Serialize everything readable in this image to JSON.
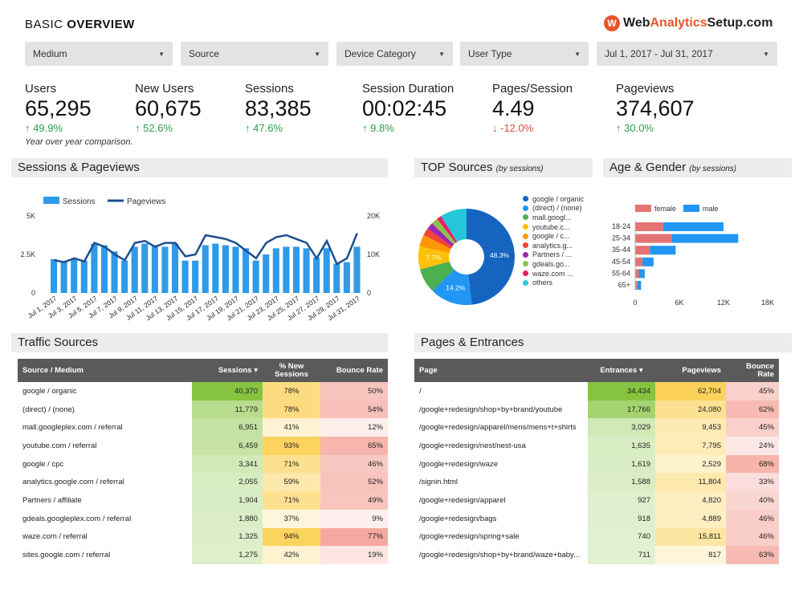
{
  "header": {
    "title_light": "BASIC ",
    "title_bold": "OVERVIEW",
    "logo_icon": "W",
    "logo_a": "Web",
    "logo_b": "Analytics",
    "logo_c": "Setup.com"
  },
  "filters": {
    "medium": "Medium",
    "source": "Source",
    "device": "Device Category",
    "user_type": "User Type",
    "date_range": "Jul 1, 2017 - Jul 31, 2017"
  },
  "kpis": [
    {
      "label": "Users",
      "value": "65,295",
      "change": "49.9%",
      "dir": "up"
    },
    {
      "label": "New Users",
      "value": "60,675",
      "change": "52.6%",
      "dir": "up"
    },
    {
      "label": "Sessions",
      "value": "83,385",
      "change": "47.6%",
      "dir": "up"
    },
    {
      "label": "Session Duration",
      "value": "00:02:45",
      "change": "9.8%",
      "dir": "up"
    },
    {
      "label": "Pages/Session",
      "value": "4.49",
      "change": "-12.0%",
      "dir": "down"
    },
    {
      "label": "Pageviews",
      "value": "374,607",
      "change": "30.0%",
      "dir": "up"
    }
  ],
  "yoy_note": "Year over year comparison.",
  "sections": {
    "sessions_pageviews": "Sessions & Pageviews",
    "top_sources": "TOP Sources",
    "top_sources_sub": "(by sessions)",
    "age_gender": "Age & Gender",
    "age_gender_sub": "(by sessions)",
    "traffic_sources": "Traffic Sources",
    "pages_entrances": "Pages & Entrances"
  },
  "colors": {
    "bar": "#2f9ae8",
    "line": "#1c4f8f",
    "female": "#e57373",
    "male": "#2196f3",
    "green": "#86c440",
    "yellow": "#fcd25b",
    "red": "#f4a59b"
  },
  "chart_data": [
    {
      "type": "bar",
      "title": "Sessions & Pageviews",
      "categories": [
        "Jul 1, 2017",
        "Jul 2, 2017",
        "Jul 3, 2017",
        "Jul 4, 2017",
        "Jul 5, 2017",
        "Jul 6, 2017",
        "Jul 7, 2017",
        "Jul 8, 2017",
        "Jul 9, 2017",
        "Jul 10, 2017",
        "Jul 11, 2017",
        "Jul 12, 2017",
        "Jul 13, 2017",
        "Jul 14, 2017",
        "Jul 15, 2017",
        "Jul 16, 2017",
        "Jul 17, 2017",
        "Jul 18, 2017",
        "Jul 19, 2017",
        "Jul 20, 2017",
        "Jul 21, 2017",
        "Jul 22, 2017",
        "Jul 23, 2017",
        "Jul 24, 2017",
        "Jul 25, 2017",
        "Jul 26, 2017",
        "Jul 27, 2017",
        "Jul 28, 2017",
        "Jul 29, 2017",
        "Jul 30, 2017",
        "Jul 31, 2017"
      ],
      "tick_labels": [
        "Jul 1, 2017",
        "Jul 3, 2017",
        "Jul 5, 2017",
        "Jul 7, 2017",
        "Jul 9, 2017",
        "Jul 11, 2017",
        "Jul 13, 2017",
        "Jul 15, 2017",
        "Jul 17, 2017",
        "Jul 19, 2017",
        "Jul 21, 2017",
        "Jul 23, 2017",
        "Jul 25, 2017",
        "Jul 27, 2017",
        "Jul 29, 2017",
        "Jul 31, 2017"
      ],
      "series": [
        {
          "name": "Sessions",
          "axis": "left",
          "type": "bar",
          "values": [
            2200,
            2000,
            2200,
            2100,
            3200,
            3100,
            2700,
            2100,
            3000,
            3200,
            3100,
            3000,
            3200,
            2100,
            2100,
            3100,
            3200,
            3100,
            3000,
            2900,
            2100,
            2500,
            2900,
            3000,
            3000,
            2900,
            2300,
            2900,
            1900,
            2000,
            3000
          ]
        },
        {
          "name": "Pageviews",
          "axis": "right",
          "type": "line",
          "values": [
            8500,
            8000,
            9000,
            8200,
            13000,
            12000,
            10000,
            8500,
            13000,
            13500,
            12000,
            13000,
            13000,
            9500,
            10000,
            15000,
            14500,
            14000,
            13000,
            11000,
            9000,
            13000,
            14500,
            15000,
            14000,
            13000,
            9000,
            13500,
            7500,
            9000,
            15500
          ]
        }
      ],
      "left_axis": {
        "ticks": [
          "0",
          "2.5K",
          "5K"
        ],
        "range": [
          0,
          5000
        ]
      },
      "right_axis": {
        "ticks": [
          "0",
          "10K",
          "20K"
        ],
        "range": [
          0,
          20000
        ]
      },
      "legend": "top-left"
    },
    {
      "type": "pie",
      "title": "TOP Sources",
      "slices": [
        {
          "label": "google / organic",
          "value": 48.3,
          "shown": "48.3%",
          "color": "#1565c0"
        },
        {
          "label": "(direct) / (none)",
          "value": 14.2,
          "shown": "14.2%",
          "color": "#2196f3"
        },
        {
          "label": "mall.googl...",
          "value": 8.3,
          "color": "#4caf50"
        },
        {
          "label": "youtube.c...",
          "value": 7.7,
          "shown": "7.7%",
          "color": "#ffc107"
        },
        {
          "label": "google / c...",
          "value": 4.0,
          "color": "#ff9800"
        },
        {
          "label": "analytics.g...",
          "value": 2.5,
          "color": "#f44336"
        },
        {
          "label": "Partners / ...",
          "value": 2.3,
          "color": "#9c27b0"
        },
        {
          "label": "gdeals.go...",
          "value": 2.2,
          "color": "#8bc34a"
        },
        {
          "label": "waze.com ...",
          "value": 1.6,
          "color": "#e91e63"
        },
        {
          "label": "others",
          "value": 8.9,
          "color": "#26c6da"
        }
      ]
    },
    {
      "type": "bar",
      "orientation": "horizontal",
      "title": "Age & Gender",
      "categories": [
        "18-24",
        "25-34",
        "35-44",
        "45-54",
        "55-64",
        "65+"
      ],
      "series": [
        {
          "name": "female",
          "values": [
            3800,
            5000,
            2000,
            1000,
            500,
            300
          ]
        },
        {
          "name": "male",
          "values": [
            8200,
            9000,
            3500,
            1500,
            800,
            500
          ]
        }
      ],
      "x_ticks": [
        "0",
        "6K",
        "12K",
        "18K"
      ],
      "xlim": [
        0,
        18000
      ],
      "stacked": true,
      "legend": "top"
    }
  ],
  "traffic_table": {
    "headers": [
      "Source / Medium",
      "Sessions ▾",
      "% New Sessions",
      "Bounce Rate"
    ],
    "rows": [
      {
        "name": "google / organic",
        "sessions": "40,370",
        "s": 40370,
        "new": "78%",
        "n": 78,
        "bounce": "50%",
        "b": 50
      },
      {
        "name": "(direct) / (none)",
        "sessions": "11,779",
        "s": 11779,
        "new": "78%",
        "n": 78,
        "bounce": "54%",
        "b": 54
      },
      {
        "name": "mall.googleplex.com / referral",
        "sessions": "6,951",
        "s": 6951,
        "new": "41%",
        "n": 41,
        "bounce": "12%",
        "b": 12
      },
      {
        "name": "youtube.com / referral",
        "sessions": "6,459",
        "s": 6459,
        "new": "93%",
        "n": 93,
        "bounce": "65%",
        "b": 65
      },
      {
        "name": "google / cpc",
        "sessions": "3,341",
        "s": 3341,
        "new": "71%",
        "n": 71,
        "bounce": "46%",
        "b": 46
      },
      {
        "name": "analytics.google.com / referral",
        "sessions": "2,055",
        "s": 2055,
        "new": "59%",
        "n": 59,
        "bounce": "52%",
        "b": 52
      },
      {
        "name": "Partners / affiliate",
        "sessions": "1,904",
        "s": 1904,
        "new": "71%",
        "n": 71,
        "bounce": "49%",
        "b": 49
      },
      {
        "name": "gdeals.googleplex.com / referral",
        "sessions": "1,880",
        "s": 1880,
        "new": "37%",
        "n": 37,
        "bounce": "9%",
        "b": 9
      },
      {
        "name": "waze.com / referral",
        "sessions": "1,325",
        "s": 1325,
        "new": "94%",
        "n": 94,
        "bounce": "77%",
        "b": 77
      },
      {
        "name": "sites.google.com / referral",
        "sessions": "1,275",
        "s": 1275,
        "new": "42%",
        "n": 42,
        "bounce": "19%",
        "b": 19
      }
    ]
  },
  "pages_table": {
    "headers": [
      "Page",
      "Entrances ▾",
      "Pageviews",
      "Bounce Rate"
    ],
    "rows": [
      {
        "name": "/",
        "entr": "34,434",
        "e": 34434,
        "pv": "62,704",
        "p": 62704,
        "bounce": "45%",
        "b": 45
      },
      {
        "name": "/google+redesign/shop+by+brand/youtube",
        "entr": "17,766",
        "e": 17766,
        "pv": "24,080",
        "p": 24080,
        "bounce": "62%",
        "b": 62
      },
      {
        "name": "/google+redesign/apparel/mens/mens+t+shirts",
        "entr": "3,029",
        "e": 3029,
        "pv": "9,453",
        "p": 9453,
        "bounce": "45%",
        "b": 45
      },
      {
        "name": "/google+redesign/nest/nest-usa",
        "entr": "1,635",
        "e": 1635,
        "pv": "7,795",
        "p": 7795,
        "bounce": "24%",
        "b": 24
      },
      {
        "name": "/google+redesign/waze",
        "entr": "1,619",
        "e": 1619,
        "pv": "2,529",
        "p": 2529,
        "bounce": "68%",
        "b": 68
      },
      {
        "name": "/signin.html",
        "entr": "1,588",
        "e": 1588,
        "pv": "11,804",
        "p": 11804,
        "bounce": "33%",
        "b": 33
      },
      {
        "name": "/google+redesign/apparel",
        "entr": "927",
        "e": 927,
        "pv": "4,820",
        "p": 4820,
        "bounce": "40%",
        "b": 40
      },
      {
        "name": "/google+redesign/bags",
        "entr": "918",
        "e": 918,
        "pv": "4,889",
        "p": 4889,
        "bounce": "46%",
        "b": 46
      },
      {
        "name": "/google+redesign/spring+sale",
        "entr": "740",
        "e": 740,
        "pv": "15,811",
        "p": 15811,
        "bounce": "46%",
        "b": 46
      },
      {
        "name": "/google+redesign/shop+by+brand/waze+baby...",
        "entr": "711",
        "e": 711,
        "pv": "817",
        "p": 817,
        "bounce": "63%",
        "b": 63
      }
    ]
  }
}
